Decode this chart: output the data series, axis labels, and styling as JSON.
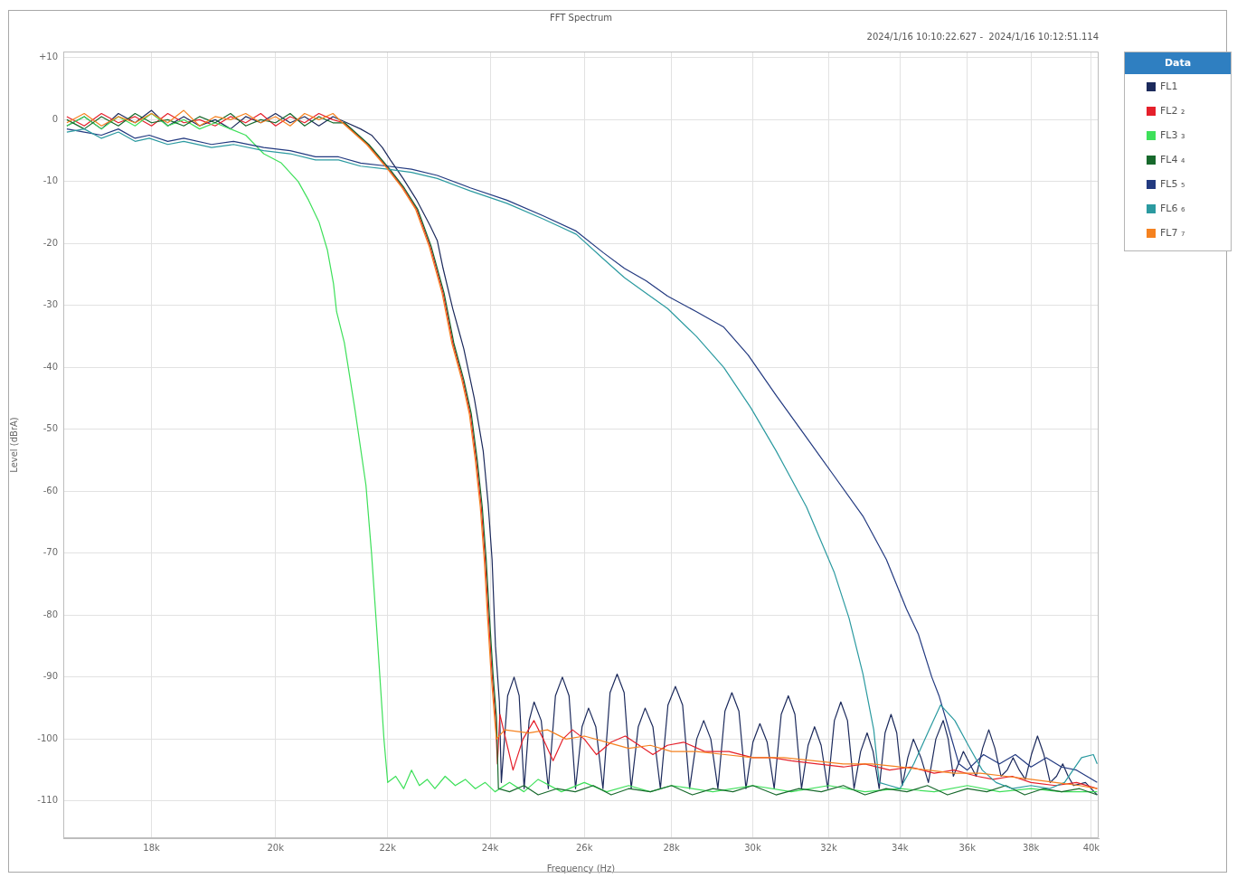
{
  "chart_data": {
    "type": "line",
    "title": "FFT Spectrum",
    "subtitle": "2024/1/16 10:10:22.627 -  2024/1/16 10:12:51.114",
    "xlabel": "Frequency (Hz)",
    "ylabel": "Level (dBrA)",
    "legend_title": "Data",
    "legend": "top right",
    "grid": true,
    "log": "x",
    "xlim": [
      16700,
      40250
    ],
    "xticks": [
      {
        "value": 18000,
        "label": "18k"
      },
      {
        "value": 20000,
        "label": "20k"
      },
      {
        "value": 22000,
        "label": "22k"
      },
      {
        "value": 24000,
        "label": "24k"
      },
      {
        "value": 26000,
        "label": "26k"
      },
      {
        "value": 28000,
        "label": "28k"
      },
      {
        "value": 30000,
        "label": "30k"
      },
      {
        "value": 32000,
        "label": "32k"
      },
      {
        "value": 34000,
        "label": "34k"
      },
      {
        "value": 36000,
        "label": "36k"
      },
      {
        "value": 38000,
        "label": "38k"
      },
      {
        "value": 40000,
        "label": "40k"
      }
    ],
    "ylim": [
      -116,
      11
    ],
    "yticks": [
      {
        "value": 10,
        "label": "+10"
      },
      0,
      -10,
      -20,
      -30,
      -40,
      -50,
      -60,
      -70,
      -80,
      -90,
      -100,
      -110
    ],
    "series": [
      {
        "name": "FL1",
        "color": "#1c2a5c",
        "x": [
          16750,
          17000,
          17250,
          17500,
          17750,
          18000,
          18250,
          18500,
          18750,
          19000,
          19250,
          19500,
          19750,
          20000,
          20250,
          20500,
          20750,
          21000,
          21250,
          21500,
          21700,
          21900,
          22050,
          22290,
          22550,
          22800,
          22946,
          23060,
          23250,
          23470,
          23680,
          23860,
          23960,
          24040,
          24110,
          24190,
          24230,
          24360,
          24494,
          24600,
          24704,
          24810,
          24913,
          25065,
          25217,
          25370,
          25520,
          25665,
          25807,
          25950,
          26094,
          26255,
          26415,
          26575,
          26735,
          26895,
          27057,
          27220,
          27379,
          27560,
          27736,
          27915,
          28092,
          28265,
          28434,
          28605,
          28776,
          28950,
          29125,
          29300,
          29473,
          29650,
          29828,
          30005,
          30183,
          30370,
          30552,
          30735,
          30921,
          31095,
          31270,
          31445,
          31618,
          31795,
          31975,
          32155,
          32331,
          32515,
          32697,
          32880,
          33062,
          33230,
          33402,
          33570,
          33741,
          33905,
          34065,
          34225,
          34388,
          34610,
          34829,
          35050,
          35270,
          35420,
          35575,
          35730,
          35880,
          36075,
          36272,
          36470,
          36663,
          36855,
          37046,
          37240,
          37428,
          37625,
          37820,
          38015,
          38212,
          38420,
          38626,
          38835,
          39040,
          39220,
          39400,
          39800,
          40200
        ],
        "values": [
          -1,
          0.5,
          -1.5,
          1,
          -0.5,
          1.5,
          -1,
          0.5,
          -1,
          0,
          -1.5,
          0.5,
          -0.5,
          1,
          -0.5,
          0.5,
          -1,
          0.5,
          -0.5,
          -1.5,
          -2.5,
          -4.5,
          -6.5,
          -9.5,
          -13,
          -17,
          -19.5,
          -24,
          -30.5,
          -37,
          -45,
          -53.5,
          -62,
          -71,
          -85,
          -94,
          -107,
          -93,
          -90,
          -93,
          -108,
          -97,
          -94,
          -97,
          -108,
          -93,
          -90,
          -93,
          -108,
          -98,
          -95,
          -98,
          -108,
          -92.5,
          -89.5,
          -92.5,
          -108,
          -98,
          -95,
          -98,
          -108,
          -94.5,
          -91.5,
          -94.5,
          -108,
          -100,
          -97,
          -100,
          -108,
          -95.5,
          -92.5,
          -95.5,
          -108,
          -100.5,
          -97.5,
          -100.5,
          -108,
          -96,
          -93,
          -96,
          -108,
          -101,
          -98,
          -101,
          -108,
          -97,
          -94,
          -97,
          -108,
          -102,
          -99,
          -102,
          -108,
          -99,
          -96,
          -99,
          -107.5,
          -103,
          -100,
          -103,
          -107,
          -100,
          -97,
          -100,
          -106,
          -104,
          -102,
          -104,
          -106,
          -101.5,
          -98.5,
          -101.5,
          -106,
          -105,
          -103,
          -105,
          -106.5,
          -102.5,
          -99.5,
          -102.5,
          -107,
          -106,
          -104,
          -106,
          -107.5,
          -107,
          -109
        ]
      },
      {
        "name": "FL2 ₂",
        "color": "#e5202b",
        "x": [
          16750,
          17000,
          17250,
          17500,
          17750,
          18000,
          18250,
          18500,
          18750,
          19000,
          19250,
          19500,
          19750,
          20000,
          20250,
          20500,
          20750,
          21000,
          21190,
          21630,
          22020,
          22290,
          22550,
          22810,
          23060,
          23250,
          23450,
          23600,
          23720,
          23820,
          23900,
          23965,
          24040,
          24110,
          24150,
          24200,
          24472,
          24680,
          24910,
          25110,
          25320,
          25530,
          25740,
          26000,
          26270,
          26600,
          26920,
          27240,
          27560,
          27900,
          28290,
          28800,
          29400,
          30000,
          30500,
          31000,
          31700,
          32400,
          33000,
          33700,
          34300,
          35000,
          35600,
          36300,
          36800,
          37400,
          38000,
          38800,
          39500,
          40200
        ],
        "values": [
          0.5,
          -1,
          1,
          -0.5,
          0.5,
          -1,
          1,
          -0.5,
          0,
          -1,
          0.5,
          -0.5,
          1,
          -1,
          0.5,
          -0.5,
          1,
          0,
          -0.5,
          -4,
          -8,
          -11,
          -14.5,
          -20.5,
          -28,
          -36,
          -42,
          -47.5,
          -55,
          -62.5,
          -71,
          -80,
          -89.5,
          -96.5,
          -104,
          -96,
          -105,
          -100,
          -97,
          -100,
          -103.5,
          -100,
          -98.5,
          -100,
          -102.5,
          -100.5,
          -99.5,
          -101,
          -102.5,
          -101,
          -100.5,
          -102,
          -102,
          -103,
          -103,
          -103.5,
          -104,
          -104.5,
          -104,
          -105,
          -104.5,
          -105.5,
          -105,
          -106,
          -106.5,
          -106,
          -107,
          -107.5,
          -107,
          -108
        ]
      },
      {
        "name": "FL3 ₃",
        "color": "#3ee05a",
        "x": [
          16750,
          17000,
          17250,
          17500,
          17750,
          18000,
          18250,
          18500,
          18750,
          19000,
          19250,
          19500,
          19800,
          20100,
          20390,
          20570,
          20752,
          20900,
          21010,
          21065,
          21204,
          21400,
          21597,
          21700,
          21798,
          21870,
          21930,
          22000,
          22150,
          22300,
          22450,
          22600,
          22750,
          22900,
          23100,
          23300,
          23500,
          23700,
          23900,
          24100,
          24400,
          24700,
          25000,
          25500,
          26000,
          26500,
          27000,
          27500,
          28000,
          29000,
          30000,
          31000,
          32000,
          33000,
          34000,
          35000,
          36000,
          37000,
          38000,
          39000,
          40200
        ],
        "values": [
          -1,
          0.5,
          -1.5,
          0.5,
          -1,
          1,
          -1,
          0,
          -1.5,
          -0.5,
          -1.5,
          -2.5,
          -5.5,
          -7,
          -10,
          -13,
          -16.5,
          -21,
          -26.5,
          -31,
          -36,
          -47,
          -59,
          -70,
          -82.5,
          -92,
          -100,
          -107,
          -106,
          -108,
          -105,
          -107.5,
          -106.5,
          -108,
          -106,
          -107.5,
          -106.5,
          -108,
          -107,
          -108.5,
          -107,
          -108.5,
          -106.5,
          -108.5,
          -107,
          -108.5,
          -107.5,
          -108.5,
          -107.5,
          -108.5,
          -107.5,
          -108.5,
          -107.5,
          -108.5,
          -108,
          -108.5,
          -107.5,
          -108.5,
          -108,
          -108.5,
          -108.5
        ]
      },
      {
        "name": "FL4 ₄",
        "color": "#17692c",
        "x": [
          16750,
          17000,
          17250,
          17500,
          17750,
          18000,
          18250,
          18500,
          18750,
          19000,
          19250,
          19500,
          19750,
          20000,
          20250,
          20500,
          20750,
          21000,
          21210,
          21650,
          22040,
          22310,
          22570,
          22830,
          23080,
          23270,
          23470,
          23620,
          23740,
          23840,
          23920,
          23985,
          24060,
          24130,
          24170,
          24400,
          24700,
          25000,
          25400,
          25800,
          26200,
          26600,
          27000,
          27500,
          28000,
          28500,
          29000,
          29500,
          30000,
          30600,
          31200,
          31800,
          32400,
          33000,
          33600,
          34200,
          34800,
          35400,
          36000,
          36600,
          37200,
          37800,
          38400,
          39000,
          39600,
          40200
        ],
        "values": [
          0,
          -1.5,
          0.5,
          -1,
          1,
          -0.5,
          0,
          -1,
          0.5,
          -0.5,
          1,
          -1,
          0,
          -0.5,
          1,
          -1,
          0.5,
          -0.5,
          -0.5,
          -4,
          -8,
          -11,
          -14.5,
          -20.5,
          -28,
          -36,
          -42,
          -47.5,
          -55,
          -62.5,
          -71,
          -80,
          -89.5,
          -96.5,
          -108,
          -108.5,
          -107.5,
          -109,
          -108,
          -108.5,
          -107.5,
          -109,
          -108,
          -108.5,
          -107.5,
          -109,
          -108,
          -108.5,
          -107.5,
          -109,
          -108,
          -108.5,
          -107.5,
          -109,
          -108,
          -108.5,
          -107.5,
          -109,
          -108,
          -108.5,
          -107.5,
          -109,
          -108,
          -108.5,
          -108,
          -109
        ]
      },
      {
        "name": "FL5 ₅",
        "color": "#233a80",
        "x": [
          16750,
          17000,
          17250,
          17500,
          17750,
          17966,
          18250,
          18500,
          18942,
          19300,
          19800,
          20250,
          20691,
          21100,
          21499,
          22000,
          22450,
          22946,
          23600,
          24345,
          25100,
          25824,
          26428,
          26900,
          27400,
          27907,
          28600,
          29271,
          29883,
          30600,
          31364,
          32146,
          32945,
          33607,
          34186,
          34529,
          34930,
          35145,
          35471,
          35744,
          36000,
          36500,
          37000,
          37500,
          38000,
          38500,
          39000,
          39500,
          40200
        ],
        "values": [
          -1.5,
          -2,
          -2.5,
          -1.5,
          -3,
          -2.5,
          -3.5,
          -3,
          -4,
          -3.5,
          -4.5,
          -5,
          -6,
          -6,
          -7,
          -7.5,
          -8,
          -9,
          -11,
          -13,
          -15.5,
          -18,
          -21.5,
          -24,
          -26,
          -28.5,
          -31,
          -33.5,
          -38,
          -44.5,
          -51,
          -57.5,
          -64,
          -71,
          -79,
          -83,
          -90,
          -93,
          -99,
          -104,
          -105,
          -102.5,
          -104,
          -102.5,
          -104.5,
          -103,
          -104.5,
          -105,
          -107
        ]
      },
      {
        "name": "FL6 ₆",
        "color": "#2b9aa0",
        "x": [
          16750,
          17000,
          17250,
          17500,
          17750,
          17966,
          18250,
          18500,
          18942,
          19300,
          19800,
          20250,
          20691,
          21100,
          21499,
          22000,
          22450,
          22946,
          23600,
          24345,
          25100,
          25824,
          26428,
          26900,
          27400,
          27907,
          28600,
          29271,
          29950,
          30605,
          31400,
          32146,
          32560,
          32945,
          33249,
          33403,
          33700,
          34000,
          34400,
          34810,
          35190,
          35620,
          36030,
          36460,
          36890,
          37400,
          38000,
          38600,
          39100,
          39670,
          40070,
          40200
        ],
        "values": [
          -2,
          -1.5,
          -3,
          -2,
          -3.5,
          -3,
          -4,
          -3.5,
          -4.5,
          -4,
          -5,
          -5.5,
          -6.5,
          -6.5,
          -7.5,
          -8,
          -8.5,
          -9.5,
          -11.5,
          -13.5,
          -16,
          -18.5,
          -22.5,
          -25.5,
          -28,
          -30.5,
          -35,
          -40,
          -46.5,
          -53.5,
          -62.5,
          -73,
          -80.5,
          -89.5,
          -98.5,
          -107,
          -107.5,
          -108,
          -104,
          -99,
          -94.5,
          -97,
          -101,
          -105,
          -107,
          -108,
          -107.5,
          -108,
          -107,
          -103,
          -102.5,
          -104
        ]
      },
      {
        "name": "FL7 ₇",
        "color": "#f58220",
        "x": [
          16750,
          17000,
          17250,
          17500,
          17750,
          18000,
          18250,
          18500,
          18750,
          19000,
          19250,
          19500,
          19750,
          20000,
          20250,
          20500,
          20750,
          21000,
          21170,
          21610,
          22000,
          22270,
          22530,
          22790,
          23040,
          23230,
          23430,
          23580,
          23700,
          23800,
          23880,
          23945,
          24020,
          24090,
          24130,
          24300,
          24800,
          25200,
          25600,
          26000,
          26500,
          27000,
          27500,
          28000,
          28600,
          29300,
          30000,
          30800,
          31600,
          32400,
          33200,
          34000,
          34800,
          35600,
          36400,
          37200,
          38000,
          38800,
          39600,
          40200
        ],
        "values": [
          -0.5,
          1,
          -1,
          0.5,
          -0.5,
          1,
          -0.5,
          1.5,
          -1,
          0.5,
          0,
          1,
          -0.5,
          0.5,
          -1,
          1,
          0,
          1,
          -0.5,
          -4,
          -8,
          -11,
          -14.5,
          -20.5,
          -28,
          -36,
          -42,
          -47.5,
          -55,
          -62.5,
          -71,
          -80,
          -89.5,
          -96.5,
          -100,
          -98.5,
          -99,
          -98.5,
          -100,
          -99.5,
          -100.5,
          -101.5,
          -101,
          -102,
          -102,
          -102.5,
          -103,
          -103,
          -103.5,
          -104,
          -104,
          -104.5,
          -105,
          -105.5,
          -105.5,
          -106,
          -106.5,
          -107,
          -107.5,
          -108
        ]
      }
    ]
  }
}
